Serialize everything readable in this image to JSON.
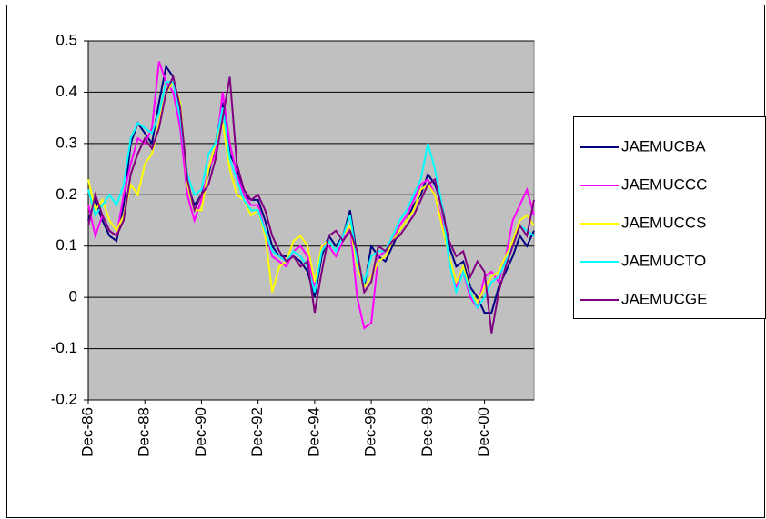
{
  "chart_data": {
    "type": "line",
    "categories": [
      "Dec-86",
      null,
      null,
      null,
      null,
      null,
      null,
      null,
      "Dec-88",
      null,
      null,
      null,
      null,
      null,
      null,
      null,
      "Dec-90",
      null,
      null,
      null,
      null,
      null,
      null,
      null,
      "Dec-92",
      null,
      null,
      null,
      null,
      null,
      null,
      null,
      "Dec-94",
      null,
      null,
      null,
      null,
      null,
      null,
      null,
      "Dec-96",
      null,
      null,
      null,
      null,
      null,
      null,
      null,
      "Dec-98",
      null,
      null,
      null,
      null,
      null,
      null,
      null,
      "Dec-00",
      null,
      null,
      null,
      null,
      null,
      null,
      null
    ],
    "series": [
      {
        "name": "JAEMUCBA",
        "color": "#000080",
        "values": [
          0.15,
          0.19,
          0.15,
          0.12,
          0.11,
          0.18,
          0.3,
          0.34,
          0.32,
          0.3,
          0.38,
          0.45,
          0.43,
          0.35,
          0.22,
          0.18,
          0.2,
          0.24,
          0.3,
          0.38,
          0.28,
          0.25,
          0.2,
          0.19,
          0.19,
          0.15,
          0.1,
          0.08,
          0.08,
          0.08,
          0.07,
          0.05,
          0.0,
          0.08,
          0.12,
          0.1,
          0.12,
          0.17,
          0.08,
          0.02,
          0.1,
          0.08,
          0.07,
          0.1,
          0.13,
          0.15,
          0.18,
          0.2,
          0.24,
          0.22,
          0.18,
          0.1,
          0.06,
          0.07,
          0.02,
          0.0,
          -0.03,
          -0.03,
          0.02,
          0.05,
          0.08,
          0.12,
          0.1,
          0.13
        ]
      },
      {
        "name": "JAEMUCCC",
        "color": "#ff00ff",
        "values": [
          0.18,
          0.12,
          0.16,
          0.13,
          0.12,
          0.2,
          0.26,
          0.31,
          0.3,
          0.33,
          0.46,
          0.42,
          0.4,
          0.33,
          0.2,
          0.15,
          0.19,
          0.25,
          0.28,
          0.4,
          0.3,
          0.24,
          0.2,
          0.18,
          0.18,
          0.13,
          0.08,
          0.07,
          0.06,
          0.09,
          0.1,
          0.08,
          0.02,
          0.1,
          0.1,
          0.08,
          0.11,
          0.14,
          0.0,
          -0.06,
          -0.05,
          0.08,
          0.09,
          0.11,
          0.14,
          0.16,
          0.19,
          0.22,
          0.23,
          0.2,
          0.15,
          0.08,
          0.02,
          0.05,
          0.0,
          -0.02,
          0.04,
          0.05,
          0.03,
          0.08,
          0.15,
          0.18,
          0.21,
          0.16
        ]
      },
      {
        "name": "JAEMUCCS",
        "color": "#ffff00",
        "values": [
          0.23,
          0.17,
          0.19,
          0.15,
          0.13,
          0.16,
          0.22,
          0.2,
          0.26,
          0.28,
          0.34,
          0.4,
          0.42,
          0.38,
          0.22,
          0.17,
          0.17,
          0.25,
          0.3,
          0.34,
          0.25,
          0.2,
          0.19,
          0.16,
          0.17,
          0.12,
          0.01,
          0.06,
          0.07,
          0.11,
          0.12,
          0.1,
          0.03,
          0.1,
          0.11,
          0.09,
          0.12,
          0.14,
          0.06,
          0.02,
          0.04,
          0.07,
          0.08,
          0.11,
          0.13,
          0.15,
          0.17,
          0.21,
          0.22,
          0.2,
          0.14,
          0.08,
          0.03,
          0.06,
          0.01,
          -0.01,
          0.02,
          0.04,
          0.05,
          0.08,
          0.11,
          0.15,
          0.16,
          0.14
        ]
      },
      {
        "name": "JAEMUCTO",
        "color": "#00ffff",
        "values": [
          0.21,
          0.16,
          0.18,
          0.2,
          0.18,
          0.22,
          0.31,
          0.34,
          0.33,
          0.32,
          0.36,
          0.42,
          0.42,
          0.35,
          0.24,
          0.2,
          0.21,
          0.28,
          0.3,
          0.37,
          0.27,
          0.23,
          0.19,
          0.17,
          0.17,
          0.13,
          0.09,
          0.08,
          0.07,
          0.09,
          0.08,
          0.06,
          0.01,
          0.09,
          0.11,
          0.09,
          0.12,
          0.16,
          0.07,
          0.03,
          0.08,
          0.09,
          0.09,
          0.12,
          0.15,
          0.17,
          0.2,
          0.23,
          0.3,
          0.25,
          0.18,
          0.07,
          0.01,
          0.05,
          0.01,
          -0.02,
          0.0,
          0.03,
          0.04,
          0.07,
          0.1,
          0.14,
          0.13,
          0.12
        ]
      },
      {
        "name": "JAEMUCGE",
        "color": "#800080",
        "values": [
          0.14,
          0.2,
          0.16,
          0.13,
          0.12,
          0.15,
          0.24,
          0.28,
          0.31,
          0.29,
          0.33,
          0.4,
          0.43,
          0.37,
          0.23,
          0.17,
          0.2,
          0.22,
          0.27,
          0.35,
          0.43,
          0.26,
          0.21,
          0.19,
          0.2,
          0.17,
          0.12,
          0.09,
          0.07,
          0.08,
          0.06,
          0.07,
          -0.03,
          0.05,
          0.12,
          0.13,
          0.11,
          0.13,
          0.09,
          0.01,
          0.03,
          0.1,
          0.09,
          0.11,
          0.12,
          0.14,
          0.16,
          0.19,
          0.22,
          0.23,
          0.17,
          0.11,
          0.08,
          0.09,
          0.04,
          0.07,
          0.05,
          -0.07,
          0.01,
          0.06,
          0.1,
          0.14,
          0.12,
          0.19
        ]
      }
    ],
    "ylim": [
      -0.2,
      0.5
    ],
    "yticks": [
      0.5,
      0.4,
      0.3,
      0.2,
      0.1,
      0,
      -0.1,
      -0.2
    ],
    "grid": true,
    "plot_background": "#c0c0c0",
    "legend": "right"
  }
}
